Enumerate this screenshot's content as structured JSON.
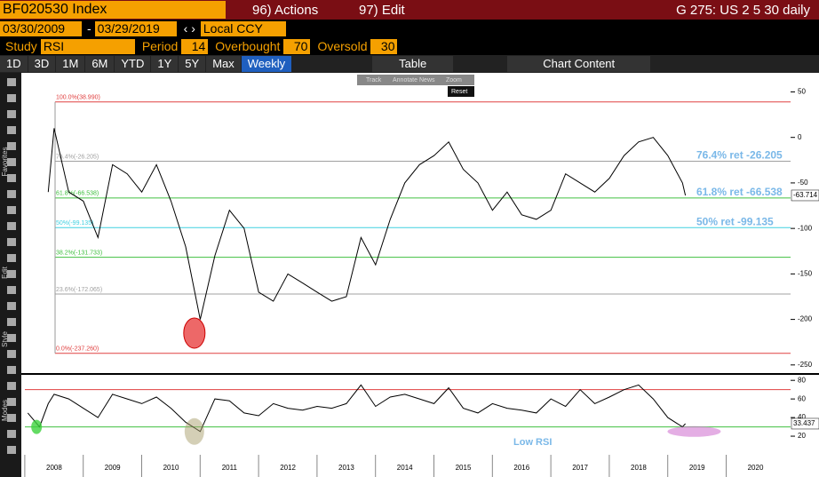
{
  "toolbar": {
    "ticker": "BF020530 Index",
    "actions": "96) Actions",
    "edit": "97) Edit",
    "title": "G 275: US 2 5 30 daily"
  },
  "dates": {
    "start": "03/30/2009",
    "end": "03/29/2019",
    "currency": "Local CCY"
  },
  "study": {
    "label": "Study",
    "name": "RSI",
    "period_label": "Period",
    "period": 14,
    "overbought_label": "Overbought",
    "overbought": 70,
    "oversold_label": "Oversold",
    "oversold": 30
  },
  "periods": [
    "1D",
    "3D",
    "1M",
    "6M",
    "YTD",
    "1Y",
    "5Y",
    "Max",
    "Weekly"
  ],
  "table": "Table",
  "chart_content": "Chart Content",
  "zoom_tools": [
    "Track",
    "Annotate",
    "News",
    "Zoom"
  ],
  "reset": "Reset",
  "sidebar": [
    "Favorites",
    "Edit",
    "Style",
    "Modes"
  ],
  "chart_data": [
    {
      "type": "line",
      "color": "#000000",
      "x": [
        2007.9,
        2008.0,
        2008.25,
        2008.5,
        2008.75,
        2009.0,
        2009.25,
        2009.5,
        2009.75,
        2010.0,
        2010.25,
        2010.5,
        2010.75,
        2011.0,
        2011.25,
        2011.5,
        2011.75,
        2012.0,
        2012.25,
        2012.5,
        2012.75,
        2013.0,
        2013.25,
        2013.5,
        2013.75,
        2014.0,
        2014.25,
        2014.5,
        2014.75,
        2015.0,
        2015.25,
        2015.5,
        2015.75,
        2016.0,
        2016.25,
        2016.5,
        2016.75,
        2017.0,
        2017.25,
        2017.5,
        2017.75,
        2018.0,
        2018.25,
        2018.5,
        2018.75,
        2018.8
      ],
      "values": [
        -60,
        10,
        -60,
        -70,
        -110,
        -30,
        -40,
        -60,
        -30,
        -70,
        -120,
        -200,
        -130,
        -80,
        -100,
        -170,
        -180,
        -150,
        -160,
        -170,
        -180,
        -175,
        -110,
        -140,
        -90,
        -50,
        -30,
        -20,
        -5,
        -35,
        -50,
        -80,
        -60,
        -85,
        -90,
        -80,
        -40,
        -50,
        -60,
        -45,
        -20,
        -5,
        0,
        -20,
        -50,
        -63.714
      ],
      "xlim": [
        2007.5,
        2020.6
      ],
      "xticks": [
        2008,
        2009,
        2010,
        2011,
        2012,
        2013,
        2014,
        2015,
        2016,
        2017,
        2018,
        2019,
        2020
      ],
      "ylim": [
        -257,
        69
      ],
      "yticks": [
        50,
        0,
        -50,
        -100,
        -150,
        -200,
        -250
      ],
      "levels": [
        {
          "label": "100.0%(38.990)",
          "value": 38.99,
          "color": "#e04040"
        },
        {
          "label": "76.4%(-26.205)",
          "value": -26.205,
          "color": "#a0a0a0"
        },
        {
          "label": "61.8%(-66.538)",
          "value": -66.538,
          "color": "#40c040"
        },
        {
          "label": "50%(-99.135)",
          "value": -99.135,
          "color": "#40d0e0"
        },
        {
          "label": "38.2%(-131.733)",
          "value": -131.733,
          "color": "#40c040"
        },
        {
          "label": "23.6%(-172.065)",
          "value": -172.065,
          "color": "#a0a0a0"
        },
        {
          "label": "0.0%(-237.260)",
          "value": -237.26,
          "color": "#e04040"
        }
      ],
      "annotations": [
        {
          "text": "76.4% ret -26.205",
          "value": -26.205
        },
        {
          "text": "61.8% ret -66.538",
          "value": -66.538
        },
        {
          "text": "50% ret -99.135",
          "value": -99.135
        }
      ]
    },
    {
      "type": "line",
      "color": "#000000",
      "x": [
        2007.55,
        2007.75,
        2007.9,
        2008.0,
        2008.25,
        2008.5,
        2008.75,
        2009.0,
        2009.25,
        2009.5,
        2009.75,
        2010.0,
        2010.25,
        2010.5,
        2010.75,
        2011.0,
        2011.25,
        2011.5,
        2011.75,
        2012.0,
        2012.25,
        2012.5,
        2012.75,
        2013.0,
        2013.25,
        2013.5,
        2013.75,
        2014.0,
        2014.25,
        2014.5,
        2014.75,
        2015.0,
        2015.25,
        2015.5,
        2015.75,
        2016.0,
        2016.25,
        2016.5,
        2016.75,
        2017.0,
        2017.25,
        2017.5,
        2017.75,
        2018.0,
        2018.25,
        2018.5,
        2018.75,
        2018.8
      ],
      "values": [
        45,
        30,
        55,
        65,
        60,
        50,
        40,
        65,
        60,
        55,
        62,
        50,
        35,
        25,
        60,
        58,
        45,
        42,
        55,
        50,
        48,
        52,
        50,
        55,
        75,
        52,
        62,
        65,
        60,
        55,
        72,
        50,
        45,
        55,
        50,
        48,
        45,
        60,
        52,
        70,
        55,
        62,
        70,
        75,
        60,
        40,
        30,
        33.437
      ],
      "ylim": [
        0,
        84
      ],
      "yticks": [
        80,
        60,
        40,
        20
      ],
      "annotation": "Low RSI"
    }
  ]
}
